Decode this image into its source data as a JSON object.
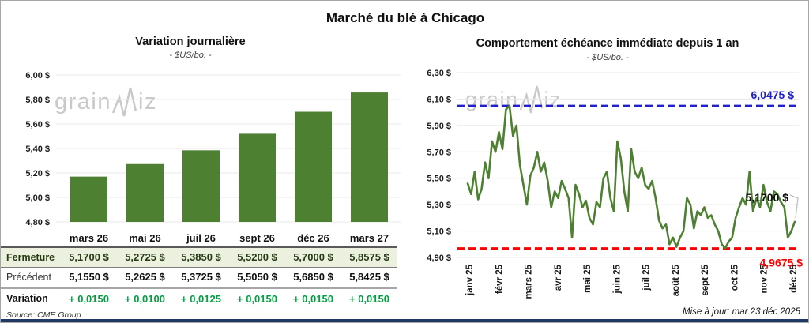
{
  "page": {
    "title": "Marché du blé à Chicago",
    "source": "Source: CME Group",
    "updated": "Mise à jour: mar 23 déc 2025",
    "watermark": {
      "part1": "grain",
      "part2": "iz"
    }
  },
  "colors": {
    "green": "#4e8031",
    "variation_green": "#00a042",
    "blue": "#2020cc",
    "red": "#ff0000",
    "grid": "#e8e8e8",
    "navy": "#1f3864",
    "fermeture_bg": "#ebf1de",
    "watermark": "#c9c9c9"
  },
  "table": {
    "columns": [
      "mars 26",
      "mai 26",
      "juil 26",
      "sept 26",
      "déc 26",
      "mars 27"
    ],
    "rows": [
      {
        "key": "fermeture",
        "label": "Fermeture",
        "values": [
          "5,1700  $",
          "5,2725  $",
          "5,3850  $",
          "5,5200  $",
          "5,7000  $",
          "5,8575  $"
        ]
      },
      {
        "key": "precedent",
        "label": "Précédent",
        "values": [
          "5,1550  $",
          "5,2625  $",
          "5,3725  $",
          "5,5050  $",
          "5,6850  $",
          "5,8425  $"
        ]
      },
      {
        "key": "variation",
        "label": "Variation",
        "values": [
          "+ 0,0150",
          "+ 0,0100",
          "+ 0,0125",
          "+ 0,0150",
          "+ 0,0150",
          "+ 0,0150"
        ]
      }
    ]
  },
  "chart_data": [
    {
      "type": "bar",
      "title": "Variation  journalière",
      "subtitle": "- $US/bo. -",
      "categories": [
        "mars 26",
        "mai 26",
        "juil 26",
        "sept 26",
        "déc 26",
        "mars 27"
      ],
      "values": [
        5.17,
        5.2725,
        5.385,
        5.52,
        5.7,
        5.8575
      ],
      "ylim": [
        4.8,
        6.0
      ],
      "ytick_step": 0.2,
      "yticks": [
        "6,00 $",
        "5,80 $",
        "5,60 $",
        "5,40 $",
        "5,20 $",
        "5,00 $",
        "4,80 $"
      ],
      "grid": true,
      "bar_color": "#4e8031"
    },
    {
      "type": "line",
      "title": "Comportement  échéance  immédiate  depuis 1 an",
      "subtitle": "- $US/bo. -",
      "x_categories": [
        "janv 25",
        "févr 25",
        "mars 25",
        "avr 25",
        "mai 25",
        "juin 25",
        "juil 25",
        "août 25",
        "sept 25",
        "oct 25",
        "nov 25",
        "déc 25"
      ],
      "ylim": [
        4.9,
        6.3
      ],
      "ytick_step": 0.2,
      "yticks": [
        "6,30 $",
        "6,10 $",
        "5,90 $",
        "5,70 $",
        "5,50 $",
        "5,30 $",
        "5,10 $",
        "4,90 $"
      ],
      "grid": true,
      "line_color": "#4e8031",
      "values": [
        5.46,
        5.38,
        5.55,
        5.34,
        5.42,
        5.62,
        5.5,
        5.78,
        5.7,
        5.85,
        5.72,
        6.02,
        6.05,
        5.82,
        5.9,
        5.6,
        5.45,
        5.3,
        5.52,
        5.58,
        5.7,
        5.55,
        5.62,
        5.48,
        5.28,
        5.4,
        5.35,
        5.48,
        5.42,
        5.35,
        5.05,
        5.45,
        5.38,
        5.28,
        5.33,
        5.2,
        5.15,
        5.32,
        5.28,
        5.5,
        5.55,
        5.35,
        5.25,
        5.78,
        5.65,
        5.4,
        5.25,
        5.72,
        5.55,
        5.5,
        5.58,
        5.45,
        5.42,
        5.48,
        5.35,
        5.18,
        5.12,
        5.15,
        5.0,
        5.05,
        4.98,
        5.05,
        5.1,
        5.35,
        5.3,
        5.12,
        5.25,
        5.22,
        5.28,
        5.2,
        5.22,
        5.15,
        5.1,
        5.0,
        4.97,
        5.02,
        5.05,
        5.2,
        5.28,
        5.35,
        5.3,
        5.55,
        5.25,
        5.35,
        5.28,
        5.45,
        5.32,
        5.25,
        5.4,
        5.38,
        5.32,
        5.28,
        5.05,
        5.1,
        5.17
      ],
      "max_line": {
        "value": 6.0475,
        "label": "6,0475 $",
        "color": "#2020cc"
      },
      "min_line": {
        "value": 4.9675,
        "label": "4,9675 $",
        "color": "#ff0000"
      },
      "last_point_label": {
        "value": 5.17,
        "label": "5,1700 $"
      }
    }
  ]
}
